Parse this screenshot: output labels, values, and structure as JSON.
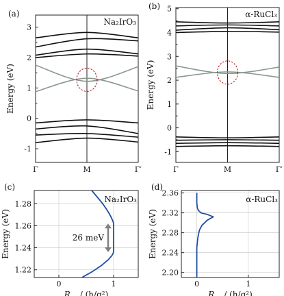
{
  "colors": {
    "band_black": "#111111",
    "band_gray": "#8a9890",
    "highlight": "#b22222",
    "curve_blue": "#1f4fa0",
    "arrow_gray": "#808080"
  },
  "chart_data": [
    {
      "panel": "(a)",
      "material": "Na₂IrO₃",
      "type": "line",
      "ylabel": "Energy (eV)",
      "ylim": [
        -1.45,
        3.4
      ],
      "yticks": [
        "-1",
        "0",
        "1",
        "2",
        "3"
      ],
      "xticks": [
        "Γ",
        "M",
        "Γ′"
      ],
      "series_black": [
        {
          "x": [
            0,
            0.5,
            1
          ],
          "y": [
            2.65,
            2.83,
            2.65
          ]
        },
        {
          "x": [
            0,
            0.5,
            1
          ],
          "y": [
            2.35,
            2.62,
            2.55
          ]
        },
        {
          "x": [
            0,
            0.5,
            1
          ],
          "y": [
            2.08,
            2.28,
            2.12
          ]
        },
        {
          "x": [
            0,
            0.5,
            1
          ],
          "y": [
            2.0,
            2.12,
            2.05
          ]
        },
        {
          "x": [
            0,
            0.5,
            1
          ],
          "y": [
            -0.15,
            -0.05,
            -0.15
          ]
        },
        {
          "x": [
            0,
            0.5,
            1
          ],
          "y": [
            -0.35,
            -0.25,
            -0.5
          ]
        },
        {
          "x": [
            0,
            0.5,
            1
          ],
          "y": [
            -0.55,
            -0.5,
            -0.62
          ]
        },
        {
          "x": [
            0,
            0.5,
            1
          ],
          "y": [
            -0.8,
            -0.65,
            -0.78
          ]
        }
      ],
      "series_gray": [
        {
          "x": [
            0,
            0.5,
            1
          ],
          "y": [
            1.75,
            1.22,
            1.7
          ]
        },
        {
          "x": [
            0,
            0.5,
            1
          ],
          "y": [
            0.88,
            1.32,
            0.9
          ]
        }
      ],
      "highlight_center": [
        0.5,
        1.27
      ]
    },
    {
      "panel": "(b)",
      "material": "α-RuCl₃",
      "type": "line",
      "ylabel": "Energy (eV)",
      "ylim": [
        -1.45,
        5.05
      ],
      "yticks": [
        "-1",
        "0",
        "1",
        "2",
        "3",
        "4",
        "5"
      ],
      "xticks": [
        "Γ",
        "M",
        "Γ′"
      ],
      "series_black": [
        {
          "x": [
            0,
            0.5,
            1
          ],
          "y": [
            4.45,
            4.4,
            4.45
          ]
        },
        {
          "x": [
            0,
            0.5,
            1
          ],
          "y": [
            4.28,
            4.32,
            4.28
          ]
        },
        {
          "x": [
            0,
            0.5,
            1
          ],
          "y": [
            4.1,
            4.2,
            4.12
          ]
        },
        {
          "x": [
            0,
            0.5,
            1
          ],
          "y": [
            4.0,
            4.05,
            4.02
          ]
        },
        {
          "x": [
            0,
            0.5,
            1
          ],
          "y": [
            -0.38,
            -0.42,
            -0.38
          ]
        },
        {
          "x": [
            0,
            0.5,
            1
          ],
          "y": [
            -0.52,
            -0.5,
            -0.52
          ]
        },
        {
          "x": [
            0,
            0.5,
            1
          ],
          "y": [
            -0.65,
            -0.62,
            -0.65
          ]
        },
        {
          "x": [
            0,
            0.5,
            1
          ],
          "y": [
            -0.78,
            -0.75,
            -0.78
          ]
        }
      ],
      "series_gray": [
        {
          "x": [
            0,
            0.5,
            1
          ],
          "y": [
            2.6,
            2.28,
            2.55
          ]
        },
        {
          "x": [
            0,
            0.5,
            1
          ],
          "y": [
            2.12,
            2.35,
            2.12
          ]
        }
      ],
      "highlight_center": [
        0.5,
        2.32
      ]
    },
    {
      "panel": "(c)",
      "material": "Na₂IrO₃",
      "type": "line",
      "ylabel": "Energy (eV)",
      "ylim": [
        1.213,
        1.292
      ],
      "yticks": [
        "1.22",
        "1.24",
        "1.26",
        "1.28"
      ],
      "xlim": [
        -0.45,
        1.45
      ],
      "xticks": [
        "0",
        "1"
      ],
      "xlabel_main": "R",
      "xlabel_sub": "xy",
      "xlabel_rest": " / (h/q²)",
      "annotation": "26 meV",
      "arrow_y": [
        1.262,
        1.236
      ],
      "arrow_x": 0.9,
      "curve": {
        "x": [
          0.6,
          0.8,
          0.92,
          0.98,
          1.0,
          1.0,
          1.0,
          0.97,
          0.9,
          0.78,
          0.6,
          0.42
        ],
        "y": [
          1.292,
          1.28,
          1.271,
          1.265,
          1.262,
          1.25,
          1.236,
          1.233,
          1.229,
          1.224,
          1.218,
          1.213
        ]
      }
    },
    {
      "panel": "(d)",
      "material": "α-RuCl₃",
      "type": "line",
      "ylabel": "Energy (eV)",
      "ylim": [
        2.19,
        2.365
      ],
      "yticks": [
        "2.20",
        "2.24",
        "2.28",
        "2.32",
        "2.36"
      ],
      "xlim": [
        -0.3,
        1.6
      ],
      "xticks": [
        "0",
        "1"
      ],
      "xlabel_main": "R",
      "xlabel_sub": "xy",
      "xlabel_rest": " / (h/q²)",
      "curve": {
        "x": [
          0,
          0,
          0.02,
          0.05,
          0.1,
          0.2,
          0.32,
          0.2,
          0.08,
          0.03,
          0.01,
          0,
          0,
          0
        ],
        "y": [
          2.19,
          2.25,
          2.27,
          2.285,
          2.295,
          2.305,
          2.312,
          2.317,
          2.32,
          2.325,
          2.33,
          2.34,
          2.35,
          2.36
        ]
      }
    }
  ]
}
